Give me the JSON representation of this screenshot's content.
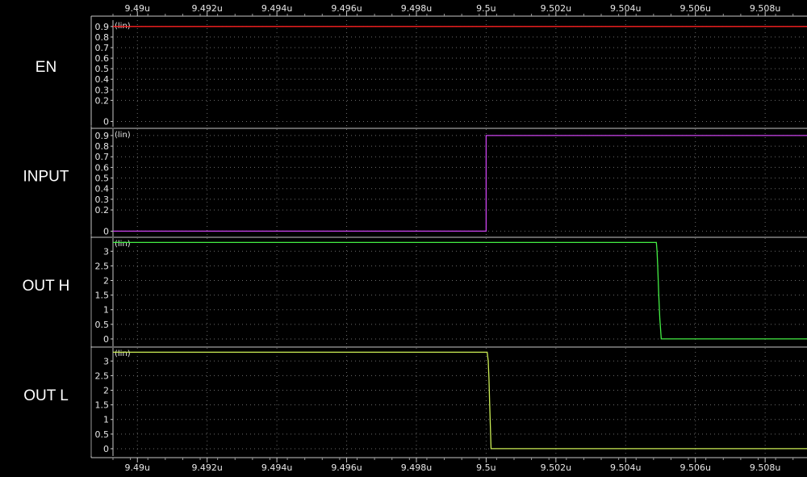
{
  "chart_data": {
    "type": "line",
    "x_tick_labels": [
      "9.49u",
      "9.492u",
      "9.494u",
      "9.496u",
      "9.498u",
      "9.5u",
      "9.502u",
      "9.504u",
      "9.506u",
      "9.508u"
    ],
    "x_ticks": [
      9.49,
      9.492,
      9.494,
      9.496,
      9.498,
      9.5,
      9.502,
      9.504,
      9.506,
      9.508
    ],
    "xlim": [
      9.4893,
      9.5092
    ],
    "grid": true,
    "panels": [
      {
        "name": "EN",
        "scale_label": "(lin)",
        "color": "#ff2020",
        "ylim": [
          -0.05,
          0.96
        ],
        "y_ticks": [
          0,
          0.2,
          0.3,
          0.4,
          0.5,
          0.6,
          0.7,
          0.8,
          0.9
        ],
        "y_tick_labels": [
          "0",
          "0.2",
          "0.3",
          "0.4",
          "0.5",
          "0.6",
          "0.7",
          "0.8",
          "0.9"
        ],
        "x": [
          9.4893,
          9.5092
        ],
        "y": [
          0.9,
          0.9
        ]
      },
      {
        "name": "INPUT",
        "scale_label": "(lin)",
        "color": "#cc44ee",
        "ylim": [
          -0.05,
          0.96
        ],
        "y_ticks": [
          0,
          0.2,
          0.3,
          0.4,
          0.5,
          0.6,
          0.7,
          0.8,
          0.9
        ],
        "y_tick_labels": [
          "0",
          "0.2",
          "0.3",
          "0.4",
          "0.5",
          "0.6",
          "0.7",
          "0.8",
          "0.9"
        ],
        "x": [
          9.4893,
          9.5,
          9.5,
          9.5092
        ],
        "y": [
          0,
          0,
          0.9,
          0.9
        ]
      },
      {
        "name": "OUT H",
        "scale_label": "(lin)",
        "color": "#44ee44",
        "ylim": [
          -0.25,
          3.45
        ],
        "y_ticks": [
          0,
          0.5,
          1,
          1.5,
          2,
          2.5,
          3
        ],
        "y_tick_labels": [
          "0",
          "0.5",
          "1",
          "1.5",
          "2",
          "2.5",
          "3"
        ],
        "x": [
          9.4893,
          9.50488,
          9.5049,
          9.50492,
          9.50495,
          9.50498,
          9.50502,
          9.5092
        ],
        "y": [
          3.3,
          3.3,
          3.0,
          2.5,
          1.5,
          0.7,
          0.0,
          0.0
        ]
      },
      {
        "name": "OUT L",
        "scale_label": "(lin)",
        "color": "#ccee55",
        "ylim": [
          -0.25,
          3.45
        ],
        "y_ticks": [
          0,
          0.5,
          1,
          1.5,
          2,
          2.5,
          3
        ],
        "y_tick_labels": [
          "0",
          "0.5",
          "1",
          "1.5",
          "2",
          "2.5",
          "3"
        ],
        "x": [
          9.4893,
          9.50003,
          9.50006,
          9.50008,
          9.5001,
          9.50012,
          9.50014,
          9.5092
        ],
        "y": [
          3.3,
          3.3,
          3.0,
          2.4,
          1.6,
          0.8,
          0.0,
          0.0
        ]
      }
    ]
  }
}
